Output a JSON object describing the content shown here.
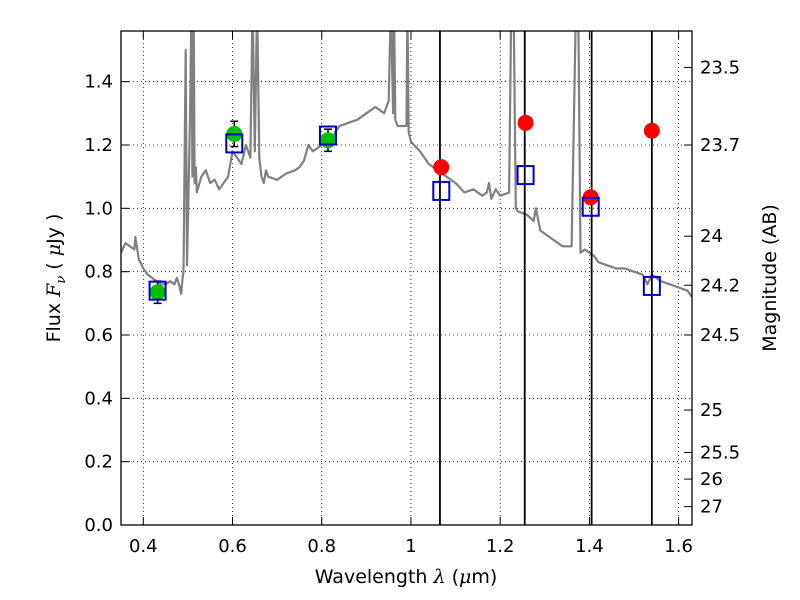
{
  "chart_data": {
    "type": "scatter",
    "xlabel": {
      "pre": "Wavelength  ",
      "var": "λ",
      "post": " (",
      "mu": "μ",
      "unit": "m)"
    },
    "ylabel": {
      "pre": "Flux  ",
      "var": "F",
      "sub": "ν",
      "mid": "  ( ",
      "mu": "μ",
      "unit": "Jy )"
    },
    "y2label": "Magnitude (AB)",
    "xlim": [
      0.35,
      1.63
    ],
    "ylim": [
      0.0,
      1.56
    ],
    "x_ticks": [
      {
        "value": 0.4,
        "label": "0.4"
      },
      {
        "value": 0.6,
        "label": "0.6"
      },
      {
        "value": 0.8,
        "label": "0.8"
      },
      {
        "value": 1.0,
        "label": "1"
      },
      {
        "value": 1.2,
        "label": "1.2"
      },
      {
        "value": 1.4,
        "label": "1.4"
      },
      {
        "value": 1.6,
        "label": "1.6"
      }
    ],
    "y_ticks": [
      {
        "value": 0.0,
        "label": "0.0"
      },
      {
        "value": 0.2,
        "label": "0.2"
      },
      {
        "value": 0.4,
        "label": "0.4"
      },
      {
        "value": 0.6,
        "label": "0.6"
      },
      {
        "value": 0.8,
        "label": "0.8"
      },
      {
        "value": 1.0,
        "label": "1.0"
      },
      {
        "value": 1.2,
        "label": "1.2"
      },
      {
        "value": 1.4,
        "label": "1.4"
      }
    ],
    "y2_ticks": [
      {
        "flux": 1.445,
        "label": "23.5"
      },
      {
        "flux": 1.2,
        "label": "23.7"
      },
      {
        "flux": 0.912,
        "label": "24"
      },
      {
        "flux": 0.757,
        "label": "24.2"
      },
      {
        "flux": 0.6,
        "label": "24.5"
      },
      {
        "flux": 0.363,
        "label": "25"
      },
      {
        "flux": 0.229,
        "label": "25.5"
      },
      {
        "flux": 0.145,
        "label": "26"
      },
      {
        "flux": 0.058,
        "label": "27"
      }
    ],
    "grid": true,
    "vertical_lines": [
      1.065,
      1.255,
      1.405,
      1.54
    ],
    "template_spectrum": {
      "color": "#808080",
      "x": [
        0.35,
        0.36,
        0.37,
        0.38,
        0.382,
        0.39,
        0.4,
        0.41,
        0.42,
        0.43,
        0.44,
        0.45,
        0.46,
        0.47,
        0.475,
        0.48,
        0.485,
        0.488,
        0.49,
        0.495,
        0.498,
        0.5,
        0.505,
        0.508,
        0.51,
        0.513,
        0.515,
        0.518,
        0.52,
        0.53,
        0.54,
        0.55,
        0.56,
        0.57,
        0.58,
        0.59,
        0.6,
        0.61,
        0.62,
        0.63,
        0.64,
        0.645,
        0.65,
        0.655,
        0.66,
        0.665,
        0.67,
        0.675,
        0.68,
        0.7,
        0.72,
        0.74,
        0.75,
        0.76,
        0.77,
        0.78,
        0.79,
        0.8,
        0.81,
        0.82,
        0.83,
        0.84,
        0.86,
        0.88,
        0.9,
        0.92,
        0.94,
        0.95,
        0.955,
        0.96,
        0.962,
        0.965,
        0.97,
        0.98,
        0.99,
        0.992,
        0.995,
        1.0,
        1.02,
        1.04,
        1.06,
        1.08,
        1.1,
        1.12,
        1.14,
        1.16,
        1.17,
        1.175,
        1.18,
        1.19,
        1.2,
        1.22,
        1.225,
        1.23,
        1.235,
        1.24,
        1.26,
        1.275,
        1.28,
        1.29,
        1.3,
        1.32,
        1.34,
        1.36,
        1.37,
        1.375,
        1.38,
        1.39,
        1.4,
        1.41,
        1.42,
        1.44,
        1.46,
        1.48,
        1.5,
        1.52,
        1.53,
        1.54,
        1.56,
        1.58,
        1.6,
        1.62,
        1.63
      ],
      "y": [
        0.86,
        0.89,
        0.88,
        0.87,
        0.91,
        0.84,
        0.81,
        0.79,
        0.78,
        0.77,
        0.76,
        0.76,
        0.77,
        0.76,
        0.78,
        0.76,
        0.73,
        0.78,
        0.8,
        1.5,
        0.82,
        0.95,
        1.3,
        1.65,
        1.1,
        1.65,
        1.08,
        1.13,
        1.05,
        1.1,
        1.12,
        1.08,
        1.09,
        1.06,
        1.08,
        1.1,
        1.18,
        1.16,
        1.14,
        1.2,
        1.16,
        1.65,
        1.18,
        1.65,
        1.16,
        1.1,
        1.08,
        1.12,
        1.1,
        1.09,
        1.11,
        1.12,
        1.13,
        1.15,
        1.2,
        1.18,
        1.19,
        1.2,
        1.22,
        1.21,
        1.24,
        1.26,
        1.27,
        1.28,
        1.3,
        1.32,
        1.3,
        1.34,
        1.65,
        1.3,
        1.65,
        1.28,
        1.26,
        1.26,
        1.26,
        1.65,
        1.24,
        1.21,
        1.18,
        1.14,
        1.12,
        1.1,
        1.08,
        1.05,
        1.06,
        1.04,
        1.05,
        1.08,
        1.03,
        1.06,
        1.04,
        1.05,
        1.65,
        1.65,
        1.0,
        0.99,
        0.98,
        0.96,
        1.0,
        0.93,
        0.92,
        0.9,
        0.88,
        0.88,
        1.65,
        1.65,
        0.86,
        0.87,
        0.86,
        0.85,
        0.83,
        0.82,
        0.81,
        0.81,
        0.8,
        0.79,
        0.76,
        0.79,
        0.77,
        0.76,
        0.75,
        0.74,
        0.72
      ]
    },
    "series": [
      {
        "marker": "circle",
        "color": "#00c000",
        "x": [
          0.432,
          0.604,
          0.814
        ],
        "y": [
          0.735,
          1.235,
          1.215
        ],
        "yerr": [
          0.035,
          0.04,
          0.035
        ]
      },
      {
        "marker": "circle",
        "color": "#ff0000",
        "x": [
          1.068,
          1.257,
          1.403,
          1.54
        ],
        "y": [
          1.13,
          1.27,
          1.035,
          1.245
        ]
      },
      {
        "marker": "open-square",
        "color": "#0000cc",
        "x": [
          0.432,
          0.604,
          0.814,
          1.068,
          1.257,
          1.403,
          1.54
        ],
        "y": [
          0.74,
          1.205,
          1.23,
          1.055,
          1.105,
          1.005,
          0.755
        ]
      }
    ]
  }
}
